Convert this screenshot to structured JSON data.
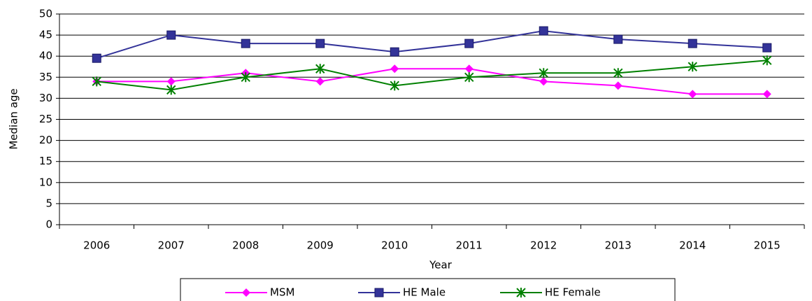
{
  "chart_data": {
    "type": "line",
    "categories": [
      "2006",
      "2007",
      "2008",
      "2009",
      "2010",
      "2011",
      "2012",
      "2013",
      "2014",
      "2015"
    ],
    "series": [
      {
        "name": "MSM",
        "color": "#ff00ff",
        "marker": "diamond",
        "values": [
          34,
          34,
          36,
          34,
          37,
          37,
          34,
          33,
          31,
          31
        ]
      },
      {
        "name": "HE Male",
        "color": "#333399",
        "marker": "square",
        "values": [
          39.5,
          45,
          43,
          43,
          41,
          43,
          46,
          44,
          43,
          42
        ]
      },
      {
        "name": "HE Female",
        "color": "#008000",
        "marker": "star",
        "values": [
          34,
          32,
          35,
          37,
          33,
          35,
          36,
          36,
          37.5,
          39
        ]
      }
    ],
    "x_label": "Year",
    "y_label": "Median age",
    "ylim": [
      0,
      50
    ],
    "yticks": [
      0,
      5,
      10,
      15,
      20,
      25,
      30,
      35,
      40,
      45,
      50
    ],
    "grid": true
  }
}
